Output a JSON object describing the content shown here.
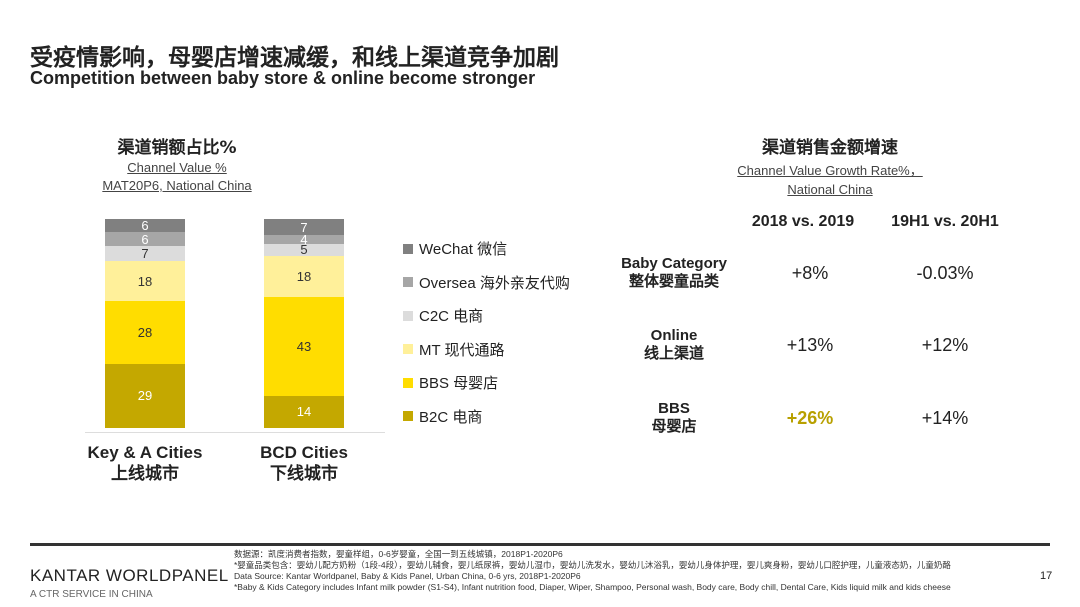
{
  "title_cn": "受疫情影响，母婴店增速减缓，和线上渠道竞争加剧",
  "title_en": "Competition between baby store & online become stronger",
  "chart_data": {
    "type": "bar",
    "stacked": true,
    "title": "渠道销额占比%",
    "subtitle": [
      "Channel Value %",
      "MAT20P6, National China"
    ],
    "categories": [
      [
        "Key & A Cities",
        "上线城市"
      ],
      [
        "BCD Cities",
        "下线城市"
      ]
    ],
    "series": [
      {
        "name": "B2C 电商",
        "color": "#C4A800",
        "values": [
          29,
          14
        ]
      },
      {
        "name": "BBS 母婴店",
        "color": "#FFDD00",
        "values": [
          28,
          43
        ]
      },
      {
        "name": "MT 现代通路",
        "color": "#FFF09A",
        "values": [
          18,
          18
        ]
      },
      {
        "name": "C2C 电商",
        "color": "#DCDCDC",
        "values": [
          7,
          5
        ]
      },
      {
        "name": "Oversea 海外亲友代购",
        "color": "#A6A6A6",
        "values": [
          6,
          4
        ]
      },
      {
        "name": "WeChat 微信",
        "color": "#808080",
        "values": [
          6,
          7
        ]
      }
    ],
    "legend": "right"
  },
  "growth": {
    "title": "渠道销售金额增速",
    "subtitle": [
      "Channel Value Growth Rate%，",
      "National China"
    ],
    "headers": [
      "2018 vs. 2019",
      "19H1 vs. 20H1"
    ],
    "rows": [
      {
        "en": "Baby Category",
        "cn": "整体婴童品类",
        "v1": "+8%",
        "v2": "-0.03%"
      },
      {
        "en": "Online",
        "cn": "线上渠道",
        "v1": "+13%",
        "v2": "+12%"
      },
      {
        "en": "BBS",
        "cn": "母婴店",
        "v1": "+26%",
        "v2": "+14%"
      }
    ],
    "highlight_color": "#B8A000"
  },
  "footer": {
    "brand": "KANTAR WORLDPANEL",
    "tagline": "A CTR SERVICE IN CHINA",
    "page": "17",
    "notes": [
      "数据源：凯度消费者指数，婴童样组，0-6岁婴童，全国一到五线城镇，2018P1-2020P6",
      "*婴童品类包含：婴幼儿配方奶粉（1段-4段），婴幼儿辅食，婴儿纸尿裤，婴幼儿湿巾，婴幼儿洗发水，婴幼儿沐浴乳，婴幼儿身体护理，婴儿爽身粉，婴幼儿口腔护理，儿童液态奶，儿童奶酪",
      "Data Source: Kantar Worldpanel, Baby & Kids Panel, Urban China, 0-6 yrs, 2018P1-2020P6",
      "*Baby & Kids Category includes Infant milk powder (S1-S4), Infant nutrition food, Diaper, Wiper, Shampoo, Personal wash, Body care, Body chill, Dental Care, Kids liquid milk and kids cheese"
    ]
  }
}
